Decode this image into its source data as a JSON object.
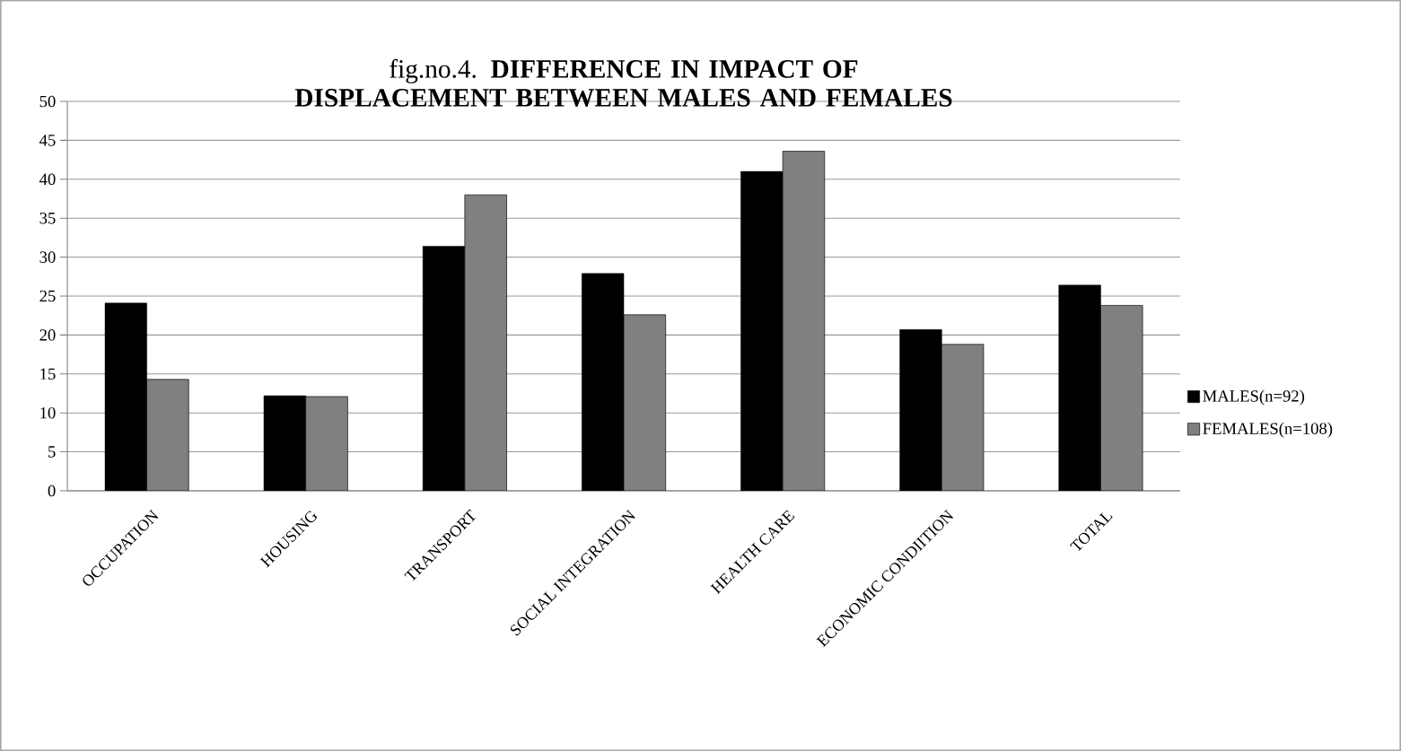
{
  "chart_data": {
    "type": "bar",
    "title": "fig.no.4. **DIFFERENCE IN IMPACT OF DISPLACEMENT BETWEEN MALES AND FEMALES**",
    "categories": [
      "OCCUPATION",
      "HOUSING",
      "TRANSPORT",
      "SOCIAL INTEGRATION",
      "HEALTH CARE",
      "ECONOMIC CONDIITION",
      "TOTAL"
    ],
    "series": [
      {
        "name": "MALES(n=92)",
        "color": "#000000",
        "values": [
          24.1,
          12.2,
          31.4,
          27.9,
          41.0,
          20.7,
          26.4
        ]
      },
      {
        "name": "FEMALES(n=108)",
        "color": "#808080",
        "values": [
          14.3,
          12.1,
          38.0,
          22.6,
          43.6,
          18.8,
          23.8
        ]
      }
    ],
    "ylim": [
      0,
      50
    ],
    "yticks": [
      0,
      5,
      10,
      15,
      20,
      25,
      30,
      35,
      40,
      45,
      50
    ],
    "grid": "y",
    "legend": "right"
  }
}
